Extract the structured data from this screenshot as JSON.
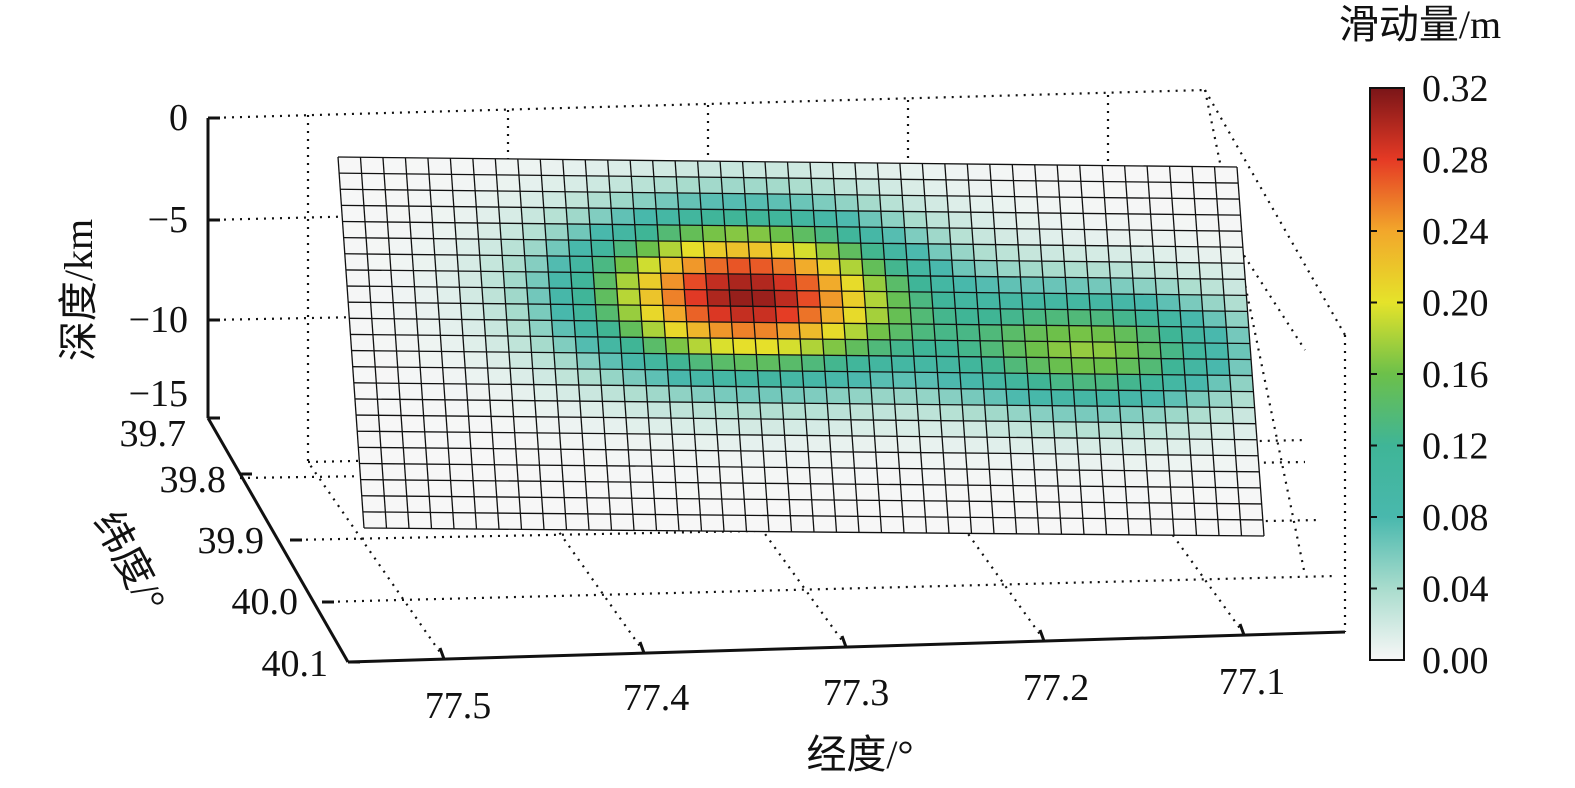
{
  "chart_data": {
    "type": "heatmap",
    "title": "",
    "xlabel": "经度/°",
    "ylabel": "纬度/°",
    "zlabel": "深度/km",
    "x_ticks": [
      "77.5",
      "77.4",
      "77.3",
      "77.2",
      "77.1"
    ],
    "y_ticks": [
      "39.7",
      "39.8",
      "39.9",
      "40.0",
      "40.1"
    ],
    "z_ticks": [
      "0",
      "−5",
      "−10",
      "−15"
    ],
    "zlim": [
      -15,
      0
    ],
    "colorbar": {
      "label": "滑动量/m",
      "ticks": [
        "0.32",
        "0.28",
        "0.24",
        "0.20",
        "0.16",
        "0.12",
        "0.08",
        "0.04",
        "0.00"
      ],
      "range": [
        0,
        0.32
      ],
      "colors": [
        "#f7f7f7",
        "#a9dccd",
        "#49b8ad",
        "#3fb597",
        "#6cc04a",
        "#e5e32a",
        "#f2a72b",
        "#e53a25",
        "#7a1518"
      ]
    },
    "fault_grid": {
      "columns": 40,
      "rows": 23
    },
    "slip_patches": [
      {
        "center_lon": 77.35,
        "center_depth_km": -8.5,
        "max_slip_m": 0.31
      },
      {
        "center_lon": 77.18,
        "center_depth_km": -11.0,
        "max_slip_m": 0.17
      }
    ],
    "grid": true,
    "legend_position": "right"
  }
}
